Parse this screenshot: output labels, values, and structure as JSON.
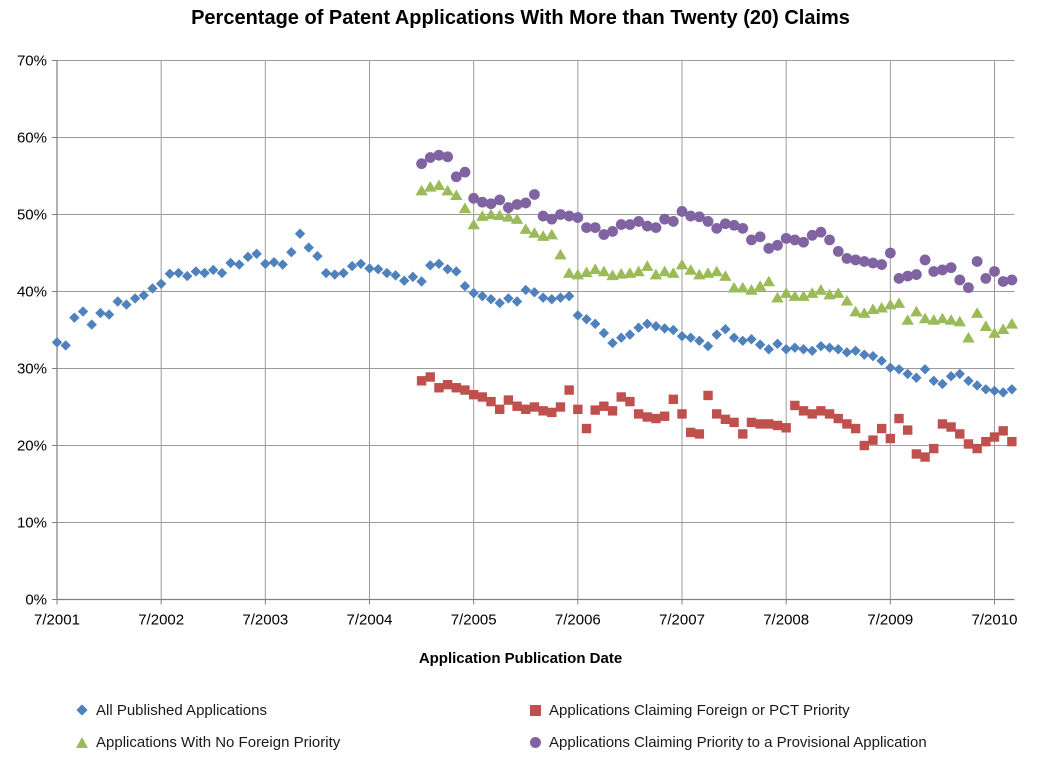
{
  "title": "Percentage of Patent Applications With More than Twenty (20) Claims",
  "x_axis": {
    "title": "Application Publication Date",
    "tick_labels": [
      "7/2001",
      "7/2002",
      "7/2003",
      "7/2004",
      "7/2005",
      "7/2006",
      "7/2007",
      "7/2008",
      "7/2009",
      "7/2010"
    ]
  },
  "y_axis": {
    "tick_labels": [
      "0%",
      "10%",
      "20%",
      "30%",
      "40%",
      "50%",
      "60%",
      "70%"
    ]
  },
  "colors": {
    "grid": "#9b9b9b",
    "axis": "#7f7f7f",
    "text": "#000000",
    "blue": "#4F81BD",
    "red": "#C0504D",
    "green": "#9BBB59",
    "purple": "#8064A2"
  },
  "chart_data": {
    "type": "scatter",
    "title": "Percentage of Patent Applications With More than Twenty (20) Claims",
    "xlabel": "Application Publication Date",
    "ylabel": "",
    "ylim": [
      0,
      70
    ],
    "y_tick_step_percent": 10,
    "x_tick_labels": [
      "7/2001",
      "7/2002",
      "7/2003",
      "7/2004",
      "7/2005",
      "7/2006",
      "7/2007",
      "7/2008",
      "7/2009",
      "7/2010"
    ],
    "x_unit": "monthly",
    "grid": true,
    "legend_position": "bottom",
    "series": [
      {
        "name": "All Published Applications",
        "marker": "diamond",
        "color": "#4F81BD",
        "start": "2001-07",
        "values": [
          33.4,
          33.0,
          36.6,
          37.4,
          35.7,
          37.2,
          37.0,
          38.7,
          38.3,
          39.1,
          39.5,
          40.4,
          41.0,
          42.3,
          42.4,
          42.0,
          42.6,
          42.4,
          42.8,
          42.4,
          43.7,
          43.5,
          44.5,
          44.9,
          43.6,
          43.8,
          43.5,
          45.1,
          47.5,
          45.7,
          44.6,
          42.4,
          42.2,
          42.4,
          43.3,
          43.6,
          43.0,
          42.9,
          42.4,
          42.1,
          41.4,
          41.9,
          41.3,
          43.4,
          43.6,
          42.9,
          42.6,
          40.7,
          39.8,
          39.4,
          39.0,
          38.5,
          39.1,
          38.7,
          40.2,
          39.9,
          39.2,
          39.0,
          39.2,
          39.4,
          36.9,
          36.4,
          35.8,
          34.6,
          33.3,
          34.0,
          34.4,
          35.3,
          35.8,
          35.5,
          35.2,
          35.0,
          34.2,
          34.0,
          33.6,
          32.9,
          34.4,
          35.1,
          34.0,
          33.6,
          33.8,
          33.1,
          32.5,
          33.2,
          32.5,
          32.7,
          32.5,
          32.3,
          32.9,
          32.7,
          32.5,
          32.1,
          32.3,
          31.8,
          31.6,
          31.0,
          30.1,
          29.9,
          29.3,
          28.8,
          29.9,
          28.4,
          28.0,
          29.0,
          29.3,
          28.4,
          27.8,
          27.3,
          27.1,
          26.9,
          27.3
        ]
      },
      {
        "name": "Applications Claiming Foreign or PCT Priority",
        "marker": "square",
        "color": "#C0504D",
        "start": "2005-01",
        "values": [
          28.4,
          28.9,
          27.5,
          27.9,
          27.5,
          27.2,
          26.6,
          26.3,
          25.7,
          24.7,
          25.9,
          25.1,
          24.7,
          25.0,
          24.5,
          24.3,
          25.0,
          27.2,
          24.7,
          22.2,
          24.6,
          25.1,
          24.5,
          26.3,
          25.7,
          24.1,
          23.7,
          23.5,
          23.8,
          26.0,
          24.1,
          21.7,
          21.5,
          26.5,
          24.1,
          23.4,
          23.0,
          21.5,
          23.0,
          22.8,
          22.8,
          22.6,
          22.3,
          25.2,
          24.5,
          24.1,
          24.5,
          24.1,
          23.5,
          22.8,
          22.2,
          20.0,
          20.7,
          22.2,
          20.9,
          23.5,
          22.0,
          18.9,
          18.5,
          19.6,
          22.8,
          22.4,
          21.5,
          20.2,
          19.6,
          20.5,
          21.1,
          21.9,
          20.5
        ]
      },
      {
        "name": "Applications With No Foreign Priority",
        "marker": "triangle",
        "color": "#9BBB59",
        "start": "2005-01",
        "values": [
          53.1,
          53.6,
          53.8,
          53.1,
          52.5,
          50.8,
          48.7,
          49.8,
          50.0,
          49.9,
          49.7,
          49.4,
          48.1,
          47.6,
          47.2,
          47.4,
          44.8,
          42.4,
          42.2,
          42.5,
          42.9,
          42.6,
          42.1,
          42.3,
          42.4,
          42.6,
          43.3,
          42.2,
          42.6,
          42.4,
          43.5,
          42.8,
          42.2,
          42.4,
          42.6,
          42.0,
          40.5,
          40.5,
          40.2,
          40.7,
          41.3,
          39.2,
          39.8,
          39.4,
          39.4,
          39.8,
          40.2,
          39.6,
          39.8,
          38.8,
          37.4,
          37.2,
          37.7,
          37.9,
          38.3,
          38.5,
          36.3,
          37.4,
          36.5,
          36.3,
          36.5,
          36.3,
          36.1,
          34.0,
          37.2,
          35.5,
          34.6,
          35.1,
          35.8
        ]
      },
      {
        "name": "Applications Claiming Priority to a Provisional Application",
        "marker": "circle",
        "color": "#8064A2",
        "start": "2005-01",
        "values": [
          56.6,
          57.4,
          57.7,
          57.5,
          54.9,
          55.5,
          52.1,
          51.6,
          51.4,
          51.9,
          50.9,
          51.3,
          51.5,
          52.6,
          49.8,
          49.4,
          50.0,
          49.8,
          49.6,
          48.3,
          48.3,
          47.4,
          47.8,
          48.7,
          48.7,
          49.1,
          48.5,
          48.3,
          49.4,
          49.1,
          50.4,
          49.8,
          49.7,
          49.1,
          48.2,
          48.8,
          48.6,
          48.2,
          46.7,
          47.1,
          45.6,
          46.0,
          46.9,
          46.7,
          46.4,
          47.3,
          47.7,
          46.7,
          45.2,
          44.3,
          44.1,
          43.9,
          43.7,
          43.5,
          45.0,
          41.7,
          42.0,
          42.2,
          44.1,
          42.6,
          42.8,
          43.1,
          41.5,
          40.5,
          43.9,
          41.7,
          42.6,
          41.3,
          41.5
        ]
      }
    ]
  },
  "legend": {
    "items": [
      {
        "label": "All Published Applications"
      },
      {
        "label": "Applications Claiming Foreign or PCT Priority"
      },
      {
        "label": "Applications With No Foreign Priority"
      },
      {
        "label": "Applications Claiming Priority to a Provisional Application"
      }
    ]
  }
}
